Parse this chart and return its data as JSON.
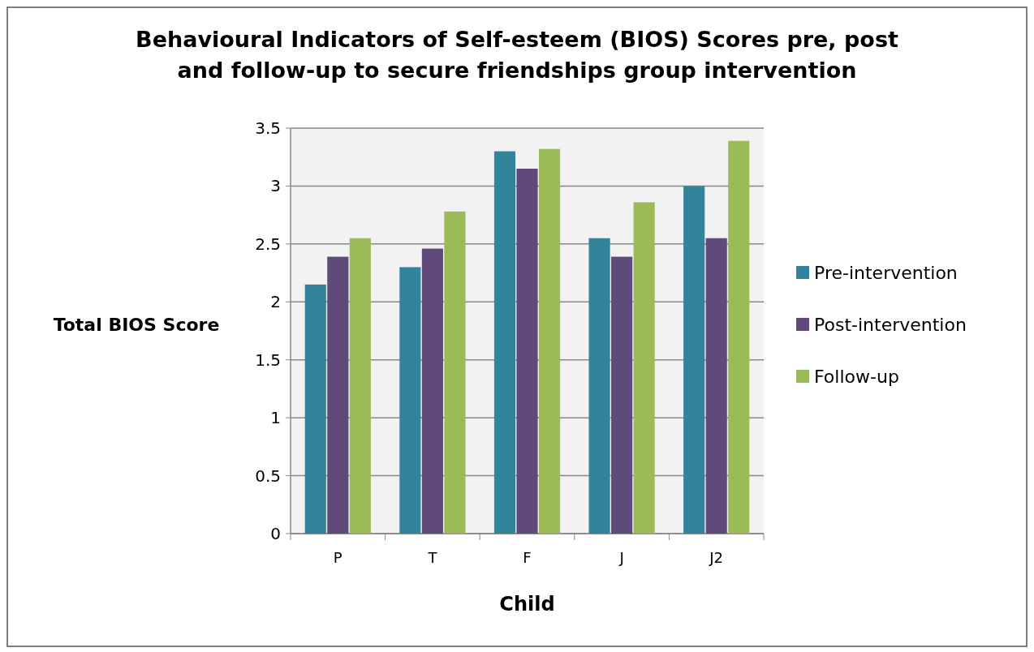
{
  "chart_data": {
    "type": "bar",
    "title": "Behavioural Indicators of Self-esteem (BIOS) Scores pre, post and follow-up to secure friendships group intervention",
    "xlabel": "Child",
    "ylabel": "Total BIOS Score",
    "categories": [
      "P",
      "T",
      "F",
      "J",
      "J2"
    ],
    "series": [
      {
        "name": "Pre-intervention",
        "color": "#31849b",
        "values": [
          2.15,
          2.3,
          3.3,
          2.55,
          3.0
        ]
      },
      {
        "name": "Post-intervention",
        "color": "#604a7b",
        "values": [
          2.39,
          2.46,
          3.15,
          2.39,
          2.55
        ]
      },
      {
        "name": "Follow-up",
        "color": "#9bbb59",
        "values": [
          2.55,
          2.78,
          3.32,
          2.86,
          3.39
        ]
      }
    ],
    "ylim": [
      0,
      3.5
    ],
    "yticks": [
      0,
      0.5,
      1,
      1.5,
      2,
      2.5,
      3,
      3.5
    ],
    "grid": "y",
    "legend": "right"
  }
}
